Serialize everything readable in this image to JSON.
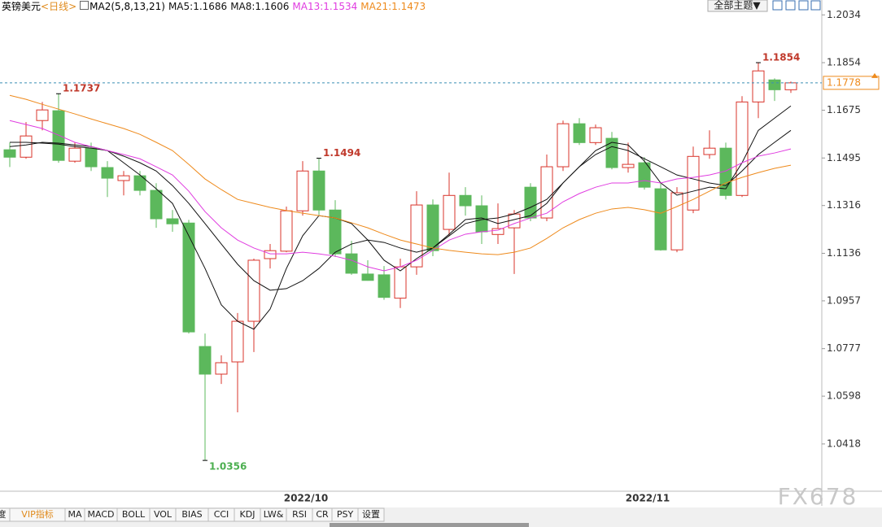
{
  "chart_data": {
    "type": "candlestick",
    "categories": [
      null,
      null,
      null,
      null,
      null,
      null,
      null,
      null,
      null,
      null,
      null,
      null,
      null,
      null,
      null,
      null,
      null,
      null,
      "2022/10",
      null,
      null,
      null,
      null,
      null,
      null,
      null,
      null,
      null,
      null,
      null,
      null,
      null,
      null,
      null,
      null,
      null,
      null,
      null,
      null,
      "2022/11",
      null,
      null,
      null,
      null,
      null,
      null,
      null,
      null,
      null
    ],
    "open": [
      1.1526,
      1.1498,
      1.1636,
      1.1673,
      1.1483,
      1.1532,
      1.1459,
      1.141,
      1.1428,
      1.1373,
      1.1266,
      1.125,
      1.0785,
      1.0681,
      1.0727,
      1.088,
      1.1116,
      1.1144,
      1.1296,
      1.1446,
      1.1299,
      1.1134,
      1.1058,
      1.1055,
      1.0967,
      1.1085,
      1.1318,
      1.1226,
      1.1354,
      1.1315,
      1.1207,
      1.1232,
      1.1385,
      1.1269,
      1.1462,
      1.1624,
      1.1553,
      1.1569,
      1.1459,
      1.1477,
      1.1379,
      1.1149,
      1.1299,
      1.1508,
      1.1532,
      1.1354,
      1.1706,
      1.1789,
      1.1752
    ],
    "high": [
      1.1553,
      1.163,
      1.1706,
      1.1737,
      1.1553,
      1.1553,
      1.1483,
      1.1446,
      1.1446,
      1.14,
      1.1299,
      1.1262,
      1.0834,
      1.0752,
      1.0911,
      1.1116,
      1.1171,
      1.1312,
      1.1483,
      1.1494,
      1.1336,
      1.1183,
      1.111,
      1.1088,
      1.1116,
      1.137,
      1.1339,
      1.144,
      1.1385,
      1.1354,
      1.1324,
      1.1299,
      1.14,
      1.1508,
      1.1636,
      1.1645,
      1.1621,
      1.1593,
      1.1553,
      1.1498,
      1.14,
      1.1385,
      1.1538,
      1.1599,
      1.1553,
      1.1728,
      1.1854,
      1.1795,
      1.1783
    ],
    "low": [
      1.1461,
      1.1492,
      1.1599,
      1.1477,
      1.1477,
      1.1446,
      1.1348,
      1.1354,
      1.1354,
      1.1232,
      1.1217,
      1.0834,
      1.0356,
      1.0644,
      1.0537,
      1.0764,
      1.1079,
      1.114,
      1.1278,
      1.1281,
      1.1122,
      1.1055,
      1.1033,
      1.0961,
      1.093,
      1.1055,
      1.1125,
      1.1201,
      1.1278,
      1.1171,
      1.1171,
      1.1058,
      1.1257,
      1.1257,
      1.1446,
      1.1544,
      1.1544,
      1.1452,
      1.144,
      1.1376,
      1.1146,
      1.114,
      1.1287,
      1.1492,
      1.1339,
      1.1348,
      1.1645,
      1.171,
      1.174
    ],
    "close": [
      1.1498,
      1.1578,
      1.1676,
      1.1486,
      1.1532,
      1.1462,
      1.1419,
      1.1428,
      1.1373,
      1.1266,
      1.1247,
      1.084,
      1.0681,
      1.0724,
      1.088,
      1.111,
      1.1146,
      1.1296,
      1.1446,
      1.1299,
      1.1134,
      1.1061,
      1.1034,
      1.097,
      1.1085,
      1.1318,
      1.1146,
      1.1354,
      1.1315,
      1.1217,
      1.1229,
      1.1284,
      1.1269,
      1.1462,
      1.1624,
      1.1553,
      1.1609,
      1.1459,
      1.1471,
      1.1385,
      1.1149,
      1.1364,
      1.1501,
      1.1532,
      1.1354,
      1.1706,
      1.1823,
      1.1752,
      1.1778
    ],
    "up_color": "#d9342b",
    "down_color": "#5cb85c",
    "series": [
      {
        "name": "MA5:1.1686",
        "color": "#111111",
        "values": [
          1.1538,
          1.1544,
          1.1554,
          1.1551,
          1.1544,
          1.1538,
          1.1523,
          1.1477,
          1.1431,
          1.1379,
          1.1324,
          1.1202,
          1.1079,
          1.0942,
          1.088,
          1.085,
          1.0926,
          1.1079,
          1.1202,
          1.1278,
          1.1269,
          1.1248,
          1.1186,
          1.111,
          1.107,
          1.1116,
          1.1156,
          1.1208,
          1.1263,
          1.1269,
          1.1248,
          1.1263,
          1.1278,
          1.1324,
          1.1401,
          1.1462,
          1.1523,
          1.1554,
          1.1544,
          1.1483,
          1.1401,
          1.1355,
          1.137,
          1.1385,
          1.1379,
          1.1477,
          1.1599,
          1.1645,
          1.1691
        ]
      },
      {
        "name": "MA8:1.1606",
        "color": "#111111",
        "values": [
          1.1554,
          1.1554,
          1.1551,
          1.1547,
          1.1538,
          1.1532,
          1.1523,
          1.1502,
          1.1477,
          1.1446,
          1.1391,
          1.1324,
          1.1248,
          1.1171,
          1.1095,
          1.1033,
          1.0997,
          1.1003,
          1.1033,
          1.1079,
          1.114,
          1.1171,
          1.1186,
          1.1177,
          1.1156,
          1.114,
          1.1156,
          1.1202,
          1.1248,
          1.1263,
          1.1269,
          1.1284,
          1.1309,
          1.1339,
          1.1401,
          1.1462,
          1.1508,
          1.1538,
          1.1523,
          1.1492,
          1.1462,
          1.1431,
          1.1416,
          1.1401,
          1.1391,
          1.1446,
          1.1508,
          1.1554,
          1.1599
        ]
      },
      {
        "name": "MA13:1.1534",
        "color": "#e03ce0",
        "values": [
          1.1636,
          1.1621,
          1.1606,
          1.1581,
          1.1554,
          1.1538,
          1.1523,
          1.1508,
          1.1492,
          1.1462,
          1.1431,
          1.137,
          1.1293,
          1.1232,
          1.1186,
          1.1156,
          1.1134,
          1.1134,
          1.114,
          1.1134,
          1.1125,
          1.111,
          1.1085,
          1.107,
          1.1085,
          1.111,
          1.1147,
          1.1186,
          1.1208,
          1.1217,
          1.1223,
          1.1248,
          1.1269,
          1.1287,
          1.133,
          1.1361,
          1.1385,
          1.1401,
          1.1401,
          1.141,
          1.1401,
          1.1416,
          1.1422,
          1.1431,
          1.1446,
          1.1477,
          1.1502,
          1.1514,
          1.1529
        ]
      },
      {
        "name": "MA21:1.1473",
        "color": "#ee8a1c",
        "values": [
          1.1731,
          1.1716,
          1.1697,
          1.1679,
          1.1661,
          1.1642,
          1.1624,
          1.1606,
          1.1584,
          1.1554,
          1.1523,
          1.1471,
          1.1416,
          1.1376,
          1.1339,
          1.1324,
          1.1309,
          1.1297,
          1.1287,
          1.1278,
          1.1269,
          1.1251,
          1.1232,
          1.1208,
          1.1186,
          1.1171,
          1.1156,
          1.1147,
          1.114,
          1.1134,
          1.1131,
          1.114,
          1.1156,
          1.1192,
          1.1232,
          1.1263,
          1.1287,
          1.1303,
          1.1309,
          1.13,
          1.1287,
          1.1312,
          1.1339,
          1.137,
          1.1401,
          1.1422,
          1.144,
          1.1456,
          1.1468
        ]
      }
    ],
    "ylim": [
      1.024,
      1.209
    ],
    "yticks": [
      1.2034,
      1.1854,
      1.1675,
      1.1495,
      1.1316,
      1.1136,
      1.0957,
      1.0777,
      1.0598,
      1.0418
    ],
    "grid": false,
    "extreme_marks": [
      {
        "field": "high",
        "index": 3
      },
      {
        "field": "high",
        "index": 19
      },
      {
        "field": "low",
        "index": 12
      },
      {
        "field": "high",
        "index": 46
      }
    ],
    "current_price": {
      "field": "close",
      "index": 48
    }
  },
  "ui": {
    "symbol": "英镑美元",
    "period": "<日线>",
    "indicator": "MA2(5,8,13,21)",
    "theme_button": "全部主题▼",
    "toolbar": [
      "度",
      "VIP指标",
      "MA",
      "MACD",
      "BOLL",
      "VOL",
      "BIAS",
      "CCI",
      "KDJ",
      "LW&",
      "RSI",
      "CR",
      "PSY",
      "设置"
    ],
    "watermark": "FX678"
  }
}
